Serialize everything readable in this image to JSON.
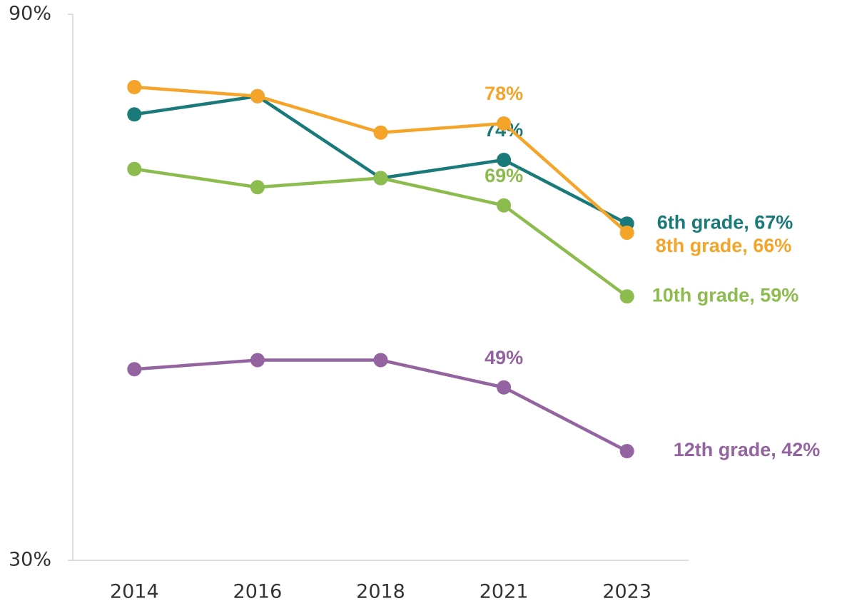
{
  "chart_data": {
    "type": "line",
    "categories": [
      "2014",
      "2016",
      "2018",
      "2021",
      "2023"
    ],
    "series": [
      {
        "name": "6th grade",
        "color": "#1a7a7a",
        "values": [
          79,
          81,
          72,
          74,
          67
        ],
        "value_labels": [
          null,
          null,
          null,
          "74%",
          "6th grade, 67%"
        ]
      },
      {
        "name": "8th grade",
        "color": "#f5a42a",
        "values": [
          82,
          81,
          77,
          78,
          66
        ],
        "value_labels": [
          null,
          null,
          null,
          "78%",
          "8th grade, 66%"
        ]
      },
      {
        "name": "10th grade",
        "color": "#8cbb4e",
        "values": [
          73,
          71,
          72,
          69,
          59
        ],
        "value_labels": [
          null,
          null,
          null,
          "69%",
          "10th grade, 59%"
        ]
      },
      {
        "name": "12th grade",
        "color": "#9464a0",
        "values": [
          51,
          52,
          52,
          49,
          42
        ],
        "value_labels": [
          null,
          null,
          null,
          "49%",
          "12th grade, 42%"
        ]
      }
    ],
    "ylim": [
      30,
      90
    ],
    "yticks": [
      {
        "value": 30,
        "label": "30%"
      },
      {
        "value": 90,
        "label": "90%"
      }
    ]
  }
}
